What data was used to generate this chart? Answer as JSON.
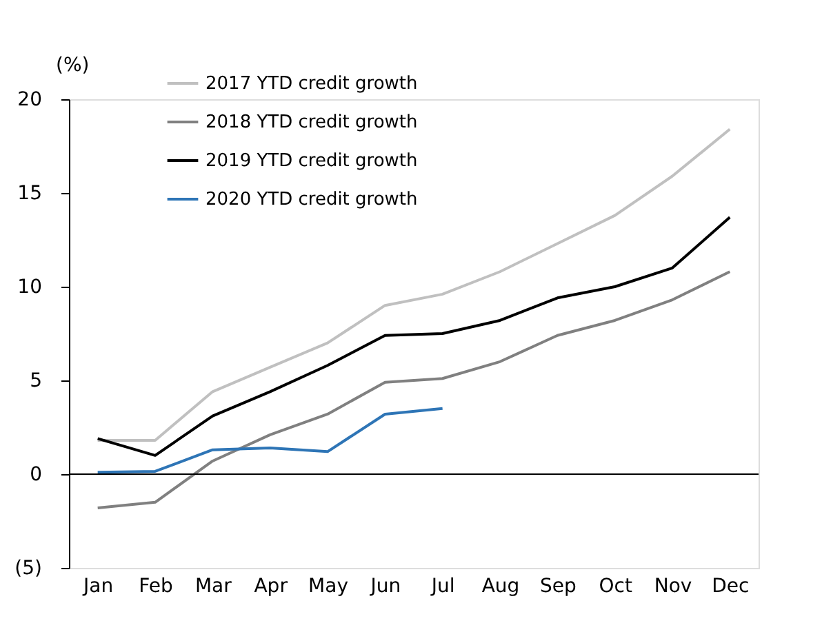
{
  "chart_data": {
    "type": "line",
    "ylabel": "(%)",
    "categories": [
      "Jan",
      "Feb",
      "Mar",
      "Apr",
      "May",
      "Jun",
      "Jul",
      "Aug",
      "Sep",
      "Oct",
      "Nov",
      "Dec"
    ],
    "series": [
      {
        "name": "2017 YTD credit growth",
        "color": "#c0c0c0",
        "values": [
          1.8,
          1.8,
          4.4,
          5.7,
          7.0,
          9.0,
          9.6,
          10.8,
          12.3,
          13.8,
          15.9,
          18.4
        ]
      },
      {
        "name": "2018 YTD credit growth",
        "color": "#808080",
        "values": [
          -1.8,
          -1.5,
          0.7,
          2.1,
          3.2,
          4.9,
          5.1,
          6.0,
          7.4,
          8.2,
          9.3,
          10.8
        ]
      },
      {
        "name": "2019 YTD credit growth",
        "color": "#000000",
        "values": [
          1.9,
          1.0,
          3.1,
          4.4,
          5.8,
          7.4,
          7.5,
          8.2,
          9.4,
          10.0,
          11.0,
          13.7
        ]
      },
      {
        "name": "2020 YTD credit growth",
        "color": "#2e75b6",
        "values": [
          0.1,
          0.15,
          1.3,
          1.4,
          1.2,
          3.2,
          3.5,
          null,
          null,
          null,
          null,
          null
        ]
      }
    ],
    "ylim": [
      -5,
      20
    ],
    "yticks": [
      {
        "value": -5,
        "label": "(5)"
      },
      0,
      5,
      10,
      15,
      20
    ],
    "ref_lines": [
      {
        "axis": "y",
        "value": 0,
        "color": "#000000"
      }
    ],
    "grid": false,
    "legend": "top left",
    "line_style": "solid",
    "marker": "none"
  }
}
